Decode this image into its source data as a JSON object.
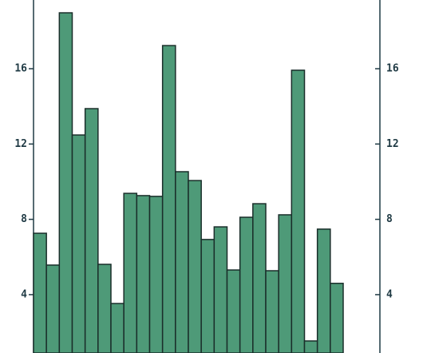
{
  "chart_data": {
    "type": "bar",
    "categories": [
      null,
      null,
      null,
      null,
      null,
      null,
      null,
      null,
      null,
      null,
      null,
      null,
      null,
      null,
      null,
      null,
      null,
      null,
      null,
      null,
      null,
      null,
      null,
      null
    ],
    "values": [
      7.26,
      5.57,
      18.97,
      12.48,
      13.88,
      5.61,
      3.53,
      9.38,
      9.26,
      9.22,
      17.23,
      10.53,
      10.06,
      6.93,
      7.6,
      5.31,
      8.11,
      8.83,
      5.27,
      8.24,
      15.92,
      1.54,
      7.48,
      4.6
    ],
    "color": "#4e9a78",
    "ylim": [
      0.9,
      19.65
    ],
    "yticks": [
      4,
      8,
      12,
      16
    ],
    "right_axis": true
  }
}
